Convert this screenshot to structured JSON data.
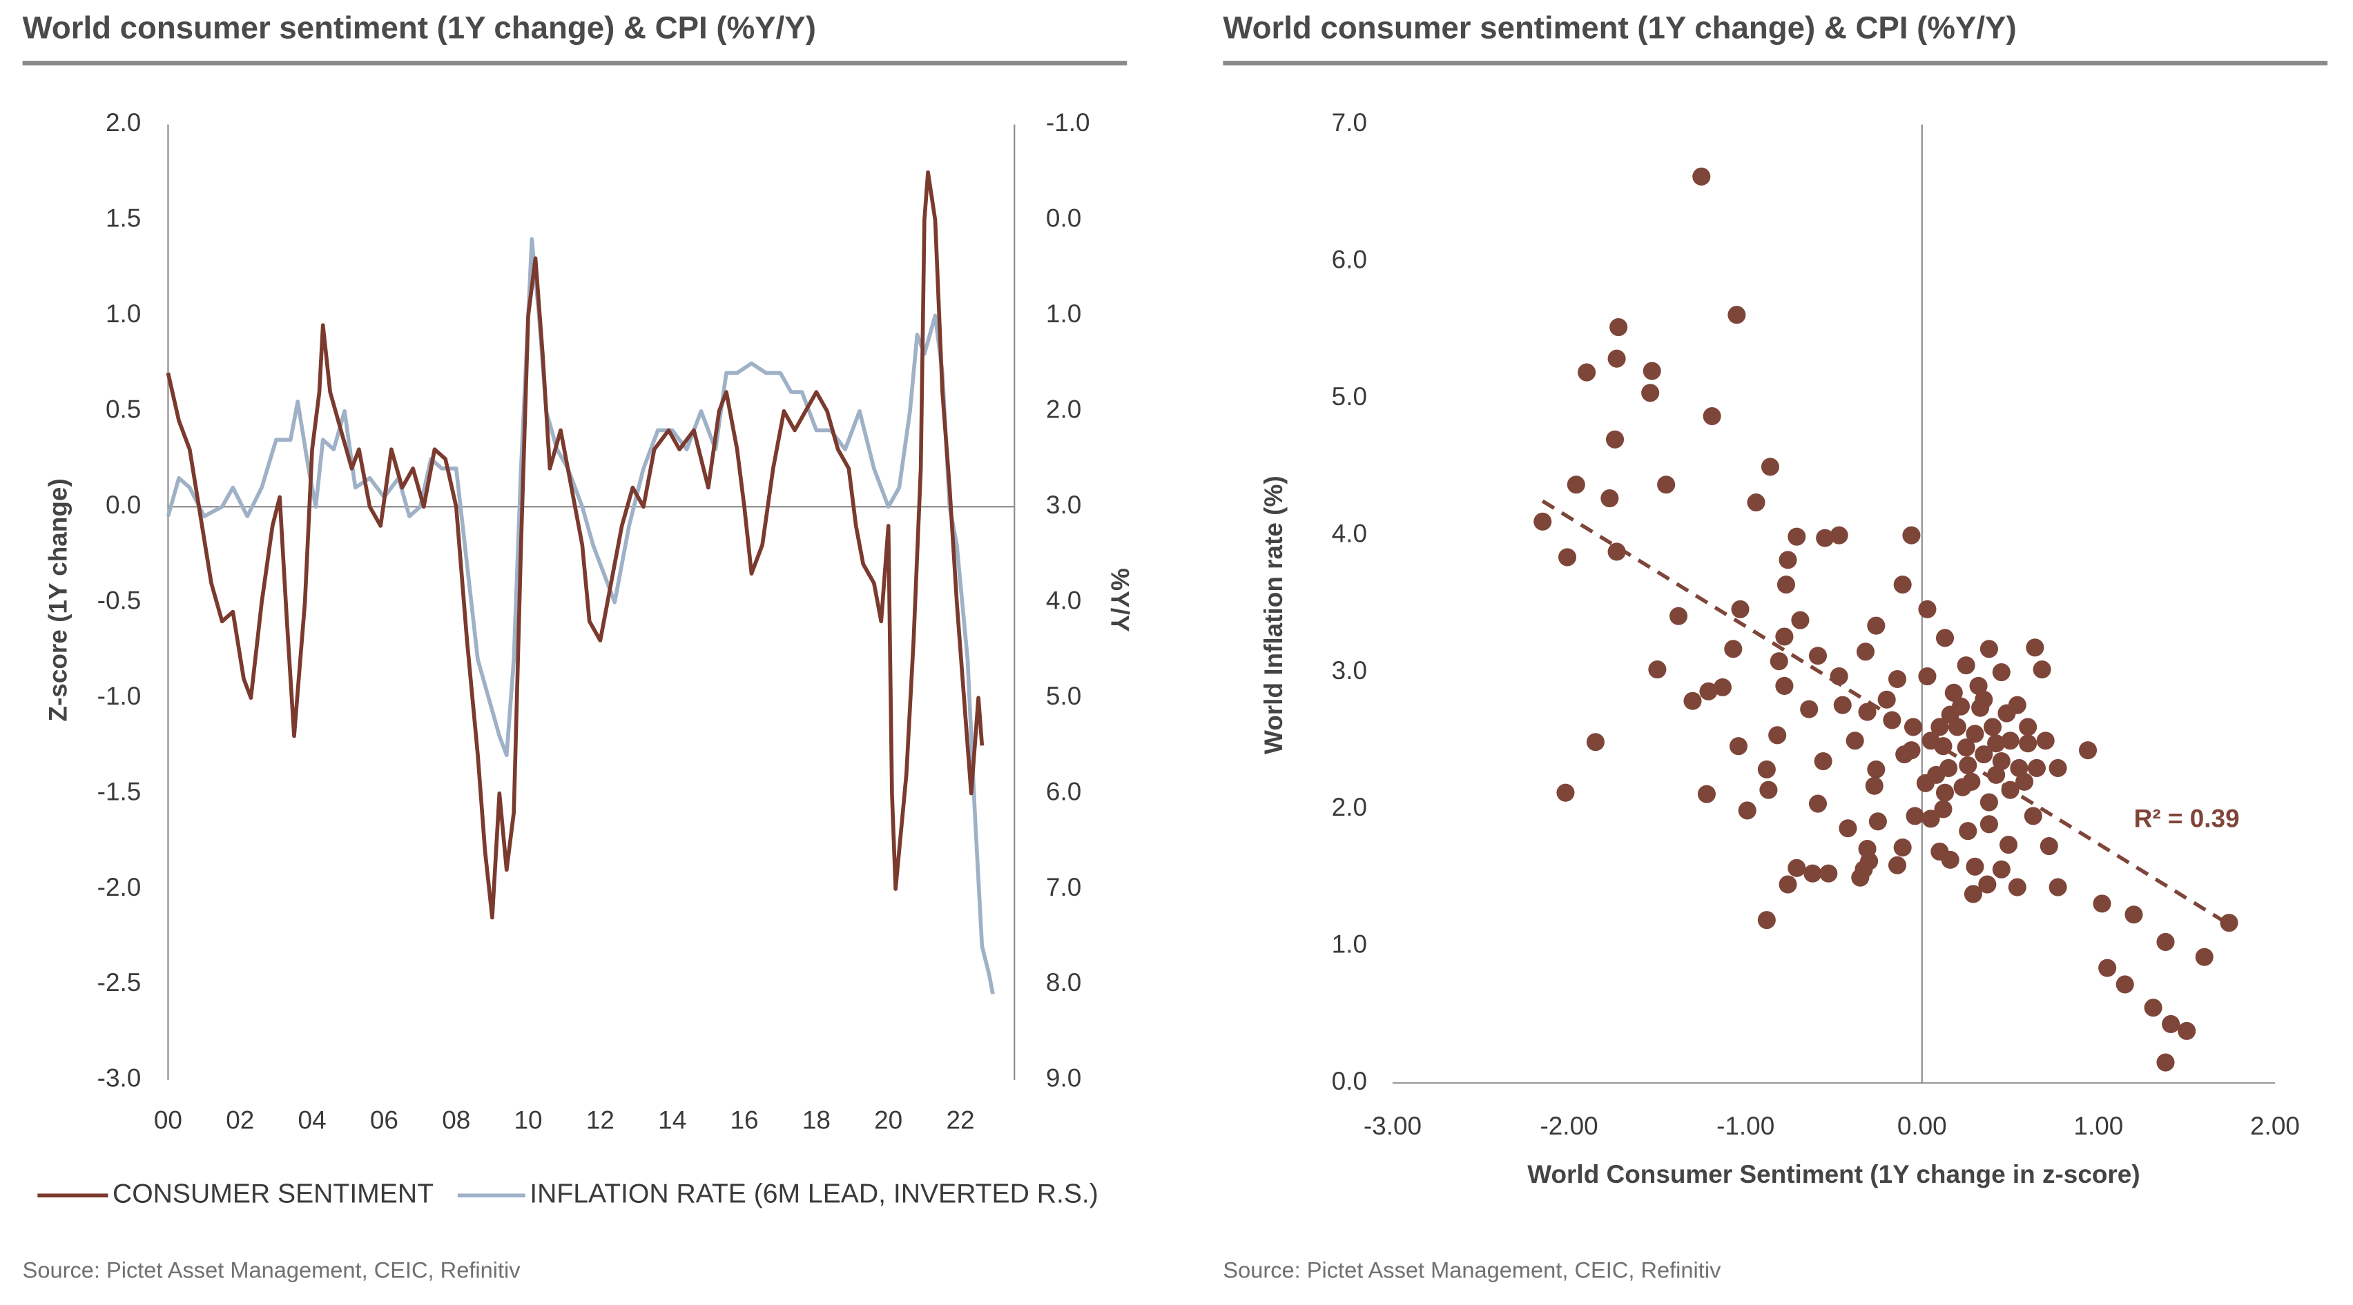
{
  "chart_data": [
    {
      "type": "line",
      "title": "World consumer sentiment (1Y change) & CPI (%Y/Y)",
      "ylabel": "Z-score (1Y change)",
      "y2label": "%Y/Y",
      "source": "Source: Pictet Asset Management, CEIC, Refinitiv",
      "xlim": [
        2000,
        2023.5
      ],
      "xticks": [
        {
          "value": 2000,
          "label": "00"
        },
        {
          "value": 2002,
          "label": "02"
        },
        {
          "value": 2004,
          "label": "04"
        },
        {
          "value": 2006,
          "label": "06"
        },
        {
          "value": 2008,
          "label": "08"
        },
        {
          "value": 2010,
          "label": "10"
        },
        {
          "value": 2012,
          "label": "12"
        },
        {
          "value": 2014,
          "label": "14"
        },
        {
          "value": 2016,
          "label": "16"
        },
        {
          "value": 2018,
          "label": "18"
        },
        {
          "value": 2020,
          "label": "20"
        },
        {
          "value": 2022,
          "label": "22"
        }
      ],
      "ylim": [
        -3,
        2
      ],
      "yticks": [
        {
          "value": 2,
          "label": "2.0"
        },
        {
          "value": 1.5,
          "label": "1.5"
        },
        {
          "value": 1,
          "label": "1.0"
        },
        {
          "value": 0.5,
          "label": "0.5"
        },
        {
          "value": 0,
          "label": "0.0"
        },
        {
          "value": -0.5,
          "label": "-0.5"
        },
        {
          "value": -1,
          "label": "-1.0"
        },
        {
          "value": -1.5,
          "label": "-1.5"
        },
        {
          "value": -2,
          "label": "-2.0"
        },
        {
          "value": -2.5,
          "label": "-2.5"
        },
        {
          "value": -3,
          "label": "-3.0"
        }
      ],
      "y2lim": [
        -1,
        9
      ],
      "y2_inverted": true,
      "y2ticks": [
        {
          "value": -1,
          "label": "-1.0"
        },
        {
          "value": 0,
          "label": "0.0"
        },
        {
          "value": 1,
          "label": "1.0"
        },
        {
          "value": 2,
          "label": "2.0"
        },
        {
          "value": 3,
          "label": "3.0"
        },
        {
          "value": 4,
          "label": "4.0"
        },
        {
          "value": 5,
          "label": "5.0"
        },
        {
          "value": 6,
          "label": "6.0"
        },
        {
          "value": 7,
          "label": "7.0"
        },
        {
          "value": 8,
          "label": "8.0"
        },
        {
          "value": 9,
          "label": "9.0"
        }
      ],
      "zero_line": true,
      "series": [
        {
          "name": "CONSUMER SENTIMENT",
          "color": "#7b3a2e",
          "x": [
            2000.0,
            2000.3,
            2000.6,
            2000.9,
            2001.2,
            2001.5,
            2001.8,
            2002.1,
            2002.3,
            2002.6,
            2002.9,
            2003.1,
            2003.3,
            2003.5,
            2003.8,
            2004.0,
            2004.2,
            2004.3,
            2004.5,
            2004.8,
            2005.1,
            2005.3,
            2005.6,
            2005.9,
            2006.2,
            2006.5,
            2006.8,
            2007.1,
            2007.4,
            2007.7,
            2008.0,
            2008.3,
            2008.6,
            2008.8,
            2009.0,
            2009.2,
            2009.4,
            2009.6,
            2009.8,
            2010.0,
            2010.2,
            2010.4,
            2010.6,
            2010.9,
            2011.2,
            2011.5,
            2011.7,
            2012.0,
            2012.3,
            2012.6,
            2012.9,
            2013.2,
            2013.5,
            2013.9,
            2014.2,
            2014.6,
            2015.0,
            2015.3,
            2015.5,
            2015.8,
            2016.0,
            2016.2,
            2016.5,
            2016.8,
            2017.1,
            2017.4,
            2017.7,
            2018.0,
            2018.3,
            2018.6,
            2018.9,
            2019.1,
            2019.3,
            2019.6,
            2019.8,
            2020.0,
            2020.1,
            2020.2,
            2020.5,
            2020.7,
            2020.9,
            2021.0,
            2021.1,
            2021.3,
            2021.5,
            2021.7,
            2021.9,
            2022.1,
            2022.3,
            2022.5,
            2022.6
          ],
          "values": [
            0.7,
            0.45,
            0.3,
            -0.05,
            -0.4,
            -0.6,
            -0.55,
            -0.9,
            -1.0,
            -0.5,
            -0.1,
            0.05,
            -0.6,
            -1.2,
            -0.5,
            0.3,
            0.6,
            0.95,
            0.6,
            0.4,
            0.2,
            0.3,
            0.0,
            -0.1,
            0.3,
            0.1,
            0.2,
            0.0,
            0.3,
            0.25,
            0.0,
            -0.7,
            -1.3,
            -1.8,
            -2.15,
            -1.5,
            -1.9,
            -1.6,
            -0.2,
            1.0,
            1.3,
            0.8,
            0.2,
            0.4,
            0.1,
            -0.2,
            -0.6,
            -0.7,
            -0.4,
            -0.1,
            0.1,
            0.0,
            0.3,
            0.4,
            0.3,
            0.4,
            0.1,
            0.5,
            0.6,
            0.3,
            0.0,
            -0.35,
            -0.2,
            0.2,
            0.5,
            0.4,
            0.5,
            0.6,
            0.5,
            0.3,
            0.2,
            -0.1,
            -0.3,
            -0.4,
            -0.6,
            -0.1,
            -1.5,
            -2.0,
            -1.4,
            -0.7,
            0.2,
            1.5,
            1.75,
            1.5,
            0.6,
            0.1,
            -0.5,
            -1.0,
            -1.5,
            -1.0,
            -1.25
          ]
        },
        {
          "name": "INFLATION RATE (6M LEAD, INVERTED R.S.)",
          "color": "#9fb1c7",
          "axis": "y2",
          "x": [
            2000.0,
            2000.3,
            2000.6,
            2001.0,
            2001.5,
            2001.8,
            2002.2,
            2002.6,
            2003.0,
            2003.4,
            2003.6,
            2003.9,
            2004.1,
            2004.3,
            2004.6,
            2004.9,
            2005.2,
            2005.6,
            2006.0,
            2006.4,
            2006.7,
            2007.0,
            2007.3,
            2007.6,
            2008.0,
            2008.3,
            2008.6,
            2008.9,
            2009.2,
            2009.4,
            2009.6,
            2009.8,
            2010.0,
            2010.1,
            2010.3,
            2010.5,
            2010.8,
            2011.1,
            2011.5,
            2011.8,
            2012.1,
            2012.4,
            2012.8,
            2013.2,
            2013.6,
            2014.0,
            2014.4,
            2014.8,
            2015.2,
            2015.5,
            2015.8,
            2016.2,
            2016.6,
            2017.0,
            2017.3,
            2017.6,
            2018.0,
            2018.4,
            2018.8,
            2019.2,
            2019.6,
            2020.0,
            2020.3,
            2020.6,
            2020.8,
            2021.0,
            2021.3,
            2021.5,
            2021.7,
            2021.9,
            2022.2,
            2022.4,
            2022.6,
            2022.8,
            2022.9
          ],
          "values": [
            3.1,
            2.7,
            2.8,
            3.1,
            3.0,
            2.8,
            3.1,
            2.8,
            2.3,
            2.3,
            1.9,
            2.6,
            3.0,
            2.3,
            2.4,
            2.0,
            2.8,
            2.7,
            2.9,
            2.7,
            3.1,
            3.0,
            2.5,
            2.6,
            2.6,
            3.6,
            4.6,
            5.0,
            5.4,
            5.6,
            4.6,
            2.6,
            1.0,
            0.2,
            1.0,
            2.0,
            2.4,
            2.6,
            3.0,
            3.4,
            3.7,
            4.0,
            3.2,
            2.6,
            2.2,
            2.2,
            2.4,
            2.0,
            2.4,
            1.6,
            1.6,
            1.5,
            1.6,
            1.6,
            1.8,
            1.8,
            2.2,
            2.2,
            2.4,
            2.0,
            2.6,
            3.0,
            2.8,
            2.0,
            1.2,
            1.4,
            1.0,
            1.6,
            3.0,
            3.4,
            4.6,
            6.2,
            7.6,
            7.9,
            8.1
          ]
        }
      ]
    },
    {
      "type": "scatter",
      "title": "World consumer sentiment (1Y change) & CPI (%Y/Y)",
      "xlabel": "World Consumer Sentiment (1Y change in z-score)",
      "ylabel": "World Inflation rate (%)",
      "source": "Source: Pictet Asset Management, CEIC, Refinitiv",
      "annotation": "R² = 0.39",
      "color": "#7e4539",
      "xlim": [
        -3,
        2
      ],
      "xticks": [
        {
          "value": -3,
          "label": "-3.00"
        },
        {
          "value": -2,
          "label": "-2.00"
        },
        {
          "value": -1,
          "label": "-1.00"
        },
        {
          "value": 0,
          "label": "0.00"
        },
        {
          "value": 1,
          "label": "1.00"
        },
        {
          "value": 2,
          "label": "2.00"
        }
      ],
      "ylim": [
        0,
        7
      ],
      "yticks": [
        {
          "value": 0,
          "label": "0.0"
        },
        {
          "value": 1,
          "label": "1.0"
        },
        {
          "value": 2,
          "label": "2.0"
        },
        {
          "value": 3,
          "label": "3.0"
        },
        {
          "value": 4,
          "label": "4.0"
        },
        {
          "value": 5,
          "label": "5.0"
        },
        {
          "value": 6,
          "label": "6.0"
        },
        {
          "value": 7,
          "label": "7.0"
        }
      ],
      "trendline": {
        "x": [
          -2.15,
          1.75
        ],
        "y": [
          4.25,
          1.15
        ]
      },
      "x": [
        -1.25,
        -1.72,
        -1.05,
        -1.73,
        -1.9,
        -1.53,
        -1.54,
        -1.19,
        -1.74,
        -0.86,
        -1.96,
        -1.45,
        -1.77,
        -0.94,
        -2.15,
        -2.01,
        -1.73,
        -0.71,
        -0.55,
        -0.47,
        -0.06,
        -0.11,
        -0.76,
        -0.77,
        -1.03,
        -1.38,
        0.03,
        -0.69,
        -0.26,
        -0.78,
        -1.07,
        -1.5,
        -0.81,
        -0.59,
        -0.32,
        0.13,
        0.38,
        0.64,
        0.68,
        -1.21,
        -1.3,
        -1.13,
        -0.78,
        -0.47,
        -0.14,
        0.03,
        -0.45,
        -0.64,
        -0.31,
        -0.17,
        0.16,
        0.33,
        0.54,
        -0.82,
        -0.38,
        -1.04,
        -1.85,
        -0.56,
        -0.26,
        -0.06,
        0.12,
        0.42,
        0.6,
        0.94,
        -0.88,
        0.26,
        0.77,
        -1.22,
        -2.02,
        -0.87,
        -0.27,
        0.02,
        0.23,
        0.5,
        -0.59,
        -0.99,
        -0.04,
        0.05,
        0.13,
        -0.42,
        -0.25,
        0.63,
        0.38,
        0.26,
        -0.11,
        0.1,
        0.16,
        0.72,
        0.49,
        -0.31,
        -0.3,
        -0.71,
        -0.62,
        -0.53,
        -0.33,
        -0.14,
        0.3,
        0.45,
        -0.76,
        -0.35,
        0.37,
        0.54,
        0.77,
        0.29,
        -0.88,
        1.02,
        1.2,
        1.74,
        1.38,
        1.6,
        1.05,
        1.15,
        1.31,
        1.41,
        1.5,
        1.38,
        0.2,
        0.3,
        0.35,
        0.4,
        0.45,
        0.25,
        0.15,
        0.1,
        0.5,
        0.55,
        0.35,
        0.28,
        0.42,
        0.05,
        0.6,
        0.22,
        0.48,
        -0.05,
        0.32,
        0.18,
        0.58,
        0.38,
        0.12,
        0.65,
        0.45,
        0.25,
        -0.2,
        -0.1,
        0.7,
        0.08
      ],
      "y": [
        6.62,
        5.52,
        5.61,
        5.29,
        5.19,
        5.2,
        5.04,
        4.87,
        4.7,
        4.5,
        4.37,
        4.37,
        4.27,
        4.24,
        4.1,
        3.84,
        3.88,
        3.99,
        3.98,
        4.0,
        4.0,
        3.64,
        3.82,
        3.64,
        3.46,
        3.41,
        3.46,
        3.38,
        3.34,
        3.26,
        3.17,
        3.02,
        3.08,
        3.12,
        3.15,
        3.25,
        3.17,
        3.18,
        3.02,
        2.86,
        2.79,
        2.89,
        2.9,
        2.97,
        2.95,
        2.97,
        2.76,
        2.73,
        2.71,
        2.65,
        2.69,
        2.74,
        2.76,
        2.54,
        2.5,
        2.46,
        2.49,
        2.35,
        2.29,
        2.43,
        2.46,
        2.48,
        2.48,
        2.43,
        2.29,
        2.32,
        2.3,
        2.11,
        2.12,
        2.14,
        2.17,
        2.19,
        2.16,
        2.14,
        2.04,
        1.99,
        1.95,
        1.93,
        2.12,
        1.86,
        1.91,
        1.95,
        1.89,
        1.84,
        1.72,
        1.69,
        1.63,
        1.73,
        1.74,
        1.71,
        1.62,
        1.57,
        1.53,
        1.53,
        1.56,
        1.59,
        1.58,
        1.56,
        1.45,
        1.5,
        1.45,
        1.43,
        1.43,
        1.38,
        1.19,
        1.31,
        1.23,
        1.17,
        1.03,
        0.92,
        0.84,
        0.72,
        0.55,
        0.43,
        0.38,
        0.15,
        2.6,
        2.55,
        2.4,
        2.6,
        2.35,
        2.45,
        2.3,
        2.6,
        2.5,
        2.3,
        2.8,
        2.2,
        2.25,
        2.5,
        2.6,
        2.75,
        2.7,
        2.6,
        2.9,
        2.85,
        2.2,
        2.05,
        2.0,
        2.3,
        3.0,
        3.05,
        2.8,
        2.4,
        2.5,
        2.25
      ]
    }
  ]
}
